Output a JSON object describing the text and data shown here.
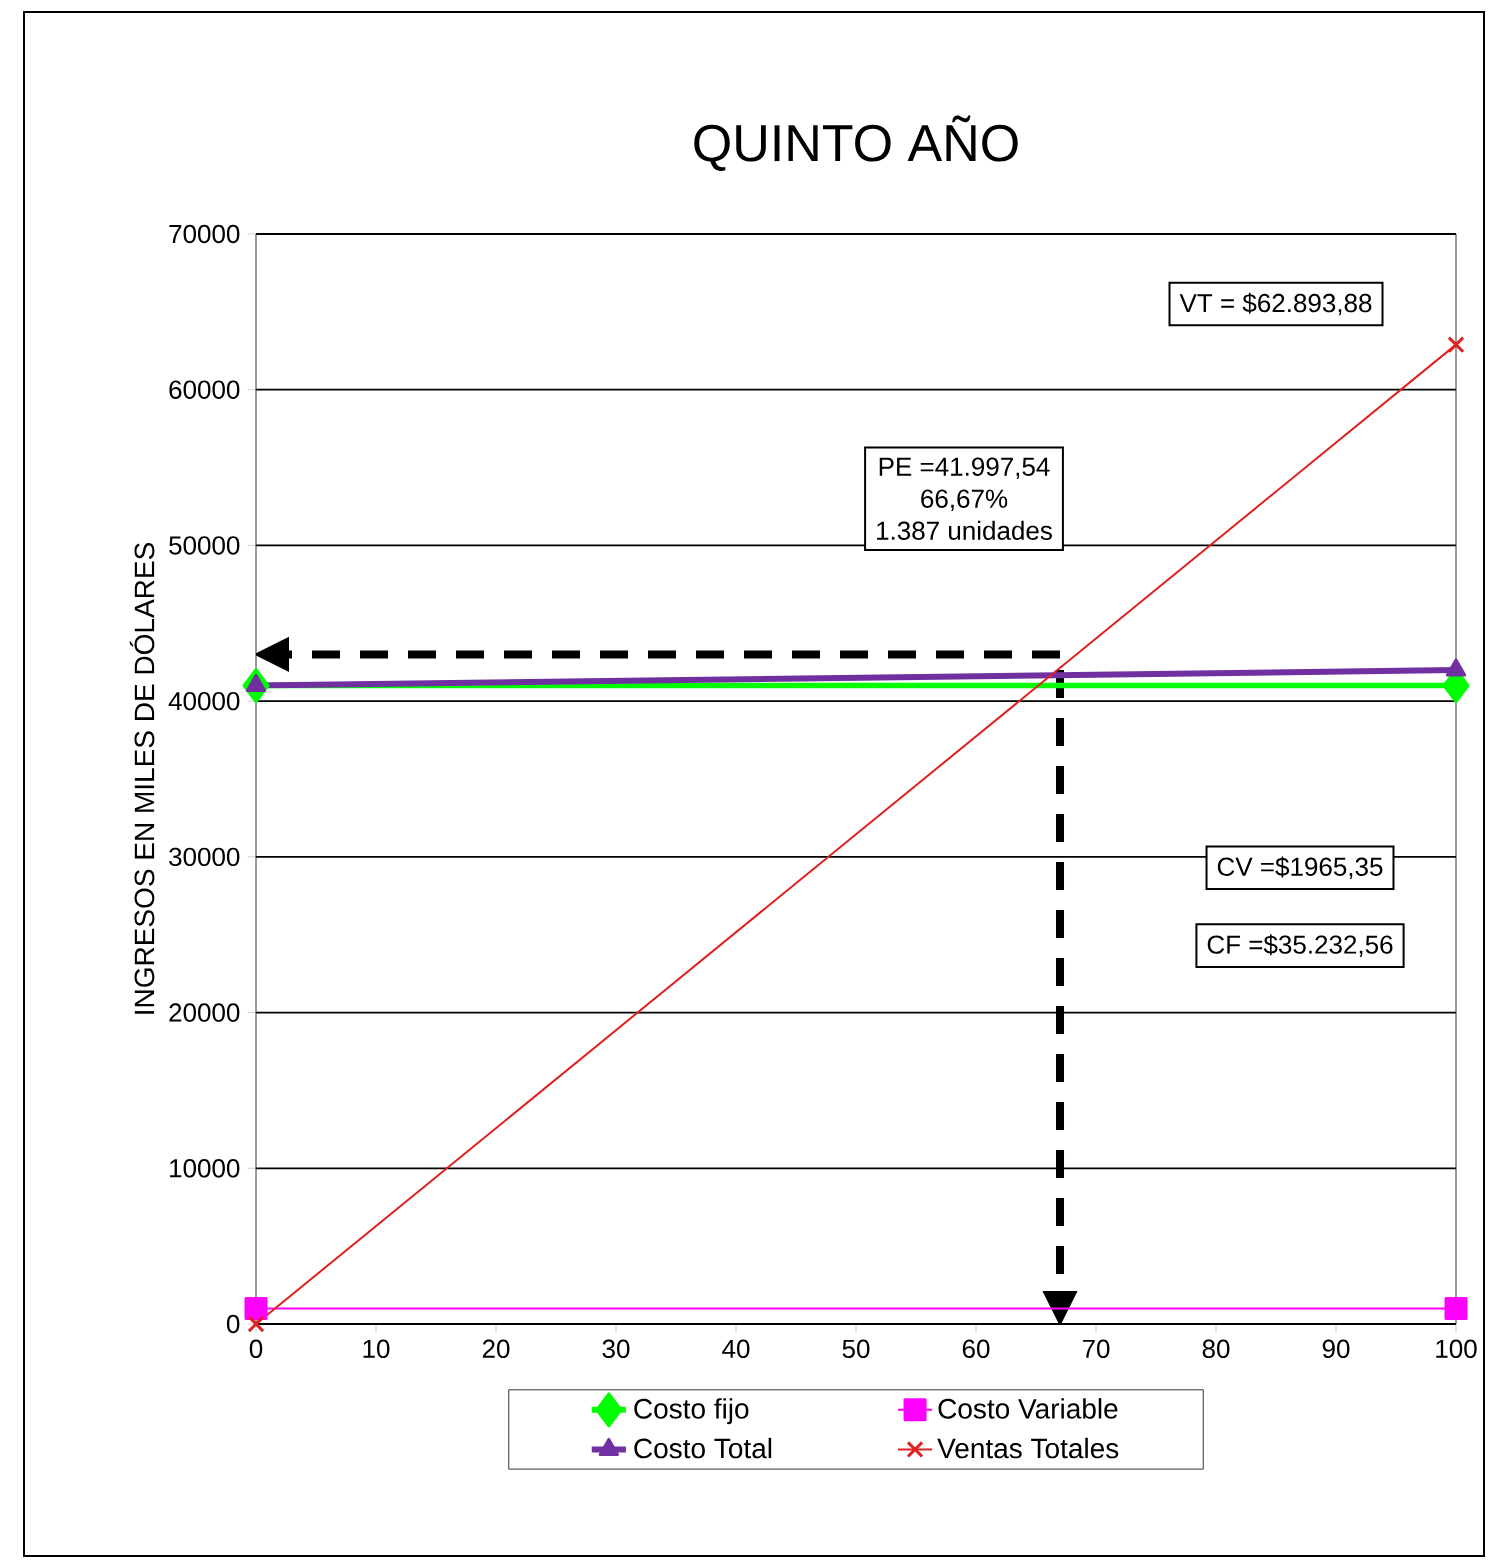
{
  "chart_data": {
    "type": "line",
    "title": "QUINTO  AÑO",
    "ylabel": "INGRESOS EN MILES DE DÓLARES",
    "x": [
      0,
      100
    ],
    "series": [
      {
        "name": "Costo fijo",
        "color": "#00ff00",
        "marker": "diamond",
        "values": [
          41000,
          41000
        ]
      },
      {
        "name": "Costo Variable",
        "color": "#ff00ff",
        "marker": "square",
        "values": [
          1000,
          1000
        ]
      },
      {
        "name": "Costo Total",
        "color": "#7030a0",
        "marker": "triangle",
        "values": [
          41000,
          42000
        ]
      },
      {
        "name": "Ventas Totales",
        "color": "#e02020",
        "marker": "cross",
        "values": [
          0,
          62894
        ]
      }
    ],
    "xlim": [
      0,
      100
    ],
    "xticks": [
      0,
      10,
      20,
      30,
      40,
      50,
      60,
      70,
      80,
      90,
      100
    ],
    "ylim": [
      0,
      70000
    ],
    "yticks": [
      0,
      10000,
      20000,
      30000,
      40000,
      50000,
      60000,
      70000
    ],
    "grid": "y",
    "legend": "bottom",
    "ref_lines": [
      {
        "axis": "y",
        "value": 43000,
        "line_style": "dashed",
        "color": "#000000"
      },
      {
        "axis": "x",
        "value": 67,
        "line_style": "dashed",
        "color": "#000000"
      }
    ],
    "annotations": [
      "VT = $62.893,88",
      "PE =41.997,54",
      "66,67%",
      "1.387 unidades",
      "CV =$1965,35",
      "CF =$35.232,56"
    ]
  }
}
